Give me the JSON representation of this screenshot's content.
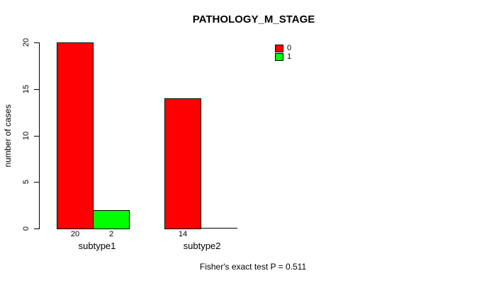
{
  "chart_data": {
    "type": "bar",
    "title": "PATHOLOGY_M_STAGE",
    "xlabel": "",
    "ylabel": "number of cases",
    "ylim": [
      0,
      20
    ],
    "yticks": [
      0,
      5,
      10,
      15,
      20
    ],
    "categories": [
      "subtype1",
      "subtype2"
    ],
    "series": [
      {
        "name": "0",
        "color": "#ff0000",
        "values": [
          20,
          14
        ],
        "value_labels": [
          "20",
          "14"
        ]
      },
      {
        "name": "1",
        "color": "#00ff00",
        "values": [
          2,
          0
        ],
        "value_labels": [
          "2",
          ""
        ]
      }
    ],
    "legend": {
      "position": "top-right",
      "entries": [
        {
          "label": "0",
          "color": "#ff0000"
        },
        {
          "label": "1",
          "color": "#00ff00"
        }
      ]
    },
    "annotation": "Fisher's exact test P = 0.511",
    "grid": false,
    "background": "#ffffff",
    "bar_border_color": "#000000",
    "axis_color": "#000000"
  }
}
